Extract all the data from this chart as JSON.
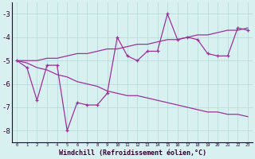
{
  "xlabel": "Windchill (Refroidissement éolien,°C)",
  "x": [
    0,
    1,
    2,
    3,
    4,
    5,
    6,
    7,
    8,
    9,
    10,
    11,
    12,
    13,
    14,
    15,
    16,
    17,
    18,
    19,
    20,
    21,
    22,
    23
  ],
  "y_main": [
    -5.0,
    -5.3,
    -6.7,
    -5.2,
    -5.2,
    -8.0,
    -6.8,
    -6.9,
    -6.9,
    -6.4,
    -4.0,
    -4.8,
    -5.0,
    -4.6,
    -4.6,
    -3.0,
    -4.1,
    -4.0,
    -4.1,
    -4.7,
    -4.8,
    -4.8,
    -3.6,
    -3.7
  ],
  "y_upper": [
    -5.0,
    -5.0,
    -5.0,
    -4.9,
    -4.9,
    -4.8,
    -4.7,
    -4.7,
    -4.6,
    -4.5,
    -4.5,
    -4.4,
    -4.3,
    -4.3,
    -4.2,
    -4.1,
    -4.1,
    -4.0,
    -3.9,
    -3.9,
    -3.8,
    -3.7,
    -3.7,
    -3.6
  ],
  "y_lower": [
    -5.0,
    -5.1,
    -5.3,
    -5.4,
    -5.6,
    -5.7,
    -5.9,
    -6.0,
    -6.1,
    -6.3,
    -6.4,
    -6.5,
    -6.5,
    -6.6,
    -6.7,
    -6.8,
    -6.9,
    -7.0,
    -7.1,
    -7.2,
    -7.2,
    -7.3,
    -7.3,
    -7.4
  ],
  "line_color": "#993399",
  "background_color": "#d8f0f0",
  "grid_color": "#b0d8d8",
  "text_color": "#330033",
  "ylim": [
    -8.5,
    -2.5
  ],
  "yticks": [
    -8,
    -7,
    -6,
    -5,
    -4,
    -3
  ],
  "xlim": [
    -0.5,
    23.5
  ]
}
